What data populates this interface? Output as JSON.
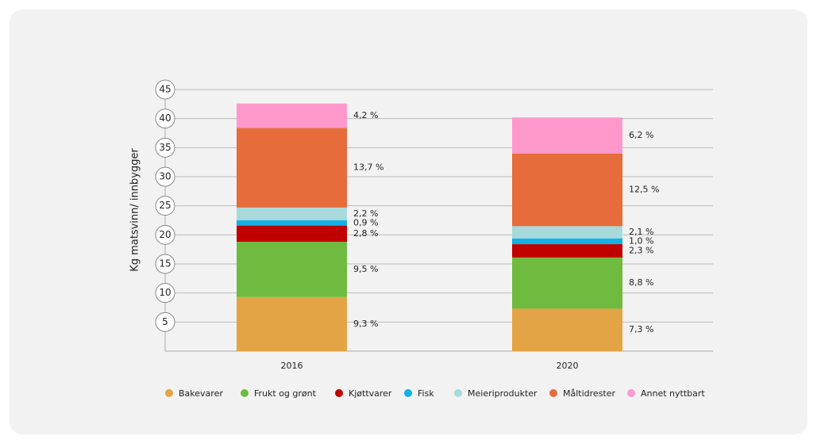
{
  "chart_data": {
    "type": "stacked_bar",
    "y_axis_label": "Kg matsvinn/ innbygger",
    "categories": [
      "2016",
      "2020"
    ],
    "series": [
      {
        "name": "Bakevarer",
        "color": "#e3a445",
        "values": [
          9.3,
          7.3
        ],
        "value_labels": [
          "9,3 %",
          "7,3 %"
        ]
      },
      {
        "name": "Frukt og grønt",
        "color": "#6fbb3f",
        "values": [
          9.5,
          8.8
        ],
        "value_labels": [
          "9,5 %",
          "8,8 %"
        ]
      },
      {
        "name": "Kjøttvarer",
        "color": "#c00000",
        "values": [
          2.8,
          2.3
        ],
        "value_labels": [
          "2,8 %",
          "2,3 %"
        ]
      },
      {
        "name": "Fisk",
        "color": "#14b1e7",
        "values": [
          0.9,
          1.0
        ],
        "value_labels": [
          "0,9 %",
          "1,0 %"
        ]
      },
      {
        "name": "Meieriprodukter",
        "color": "#a8dadc",
        "values": [
          2.2,
          2.1
        ],
        "value_labels": [
          "2,2 %",
          "2,1 %"
        ]
      },
      {
        "name": "Måltidrester",
        "color": "#e66c3b",
        "values": [
          13.7,
          12.5
        ],
        "value_labels": [
          "13,7 %",
          "12,5 %"
        ]
      },
      {
        "name": "Annet nyttbart",
        "color": "#ff99cc",
        "values": [
          4.2,
          6.2
        ],
        "value_labels": [
          "4,2 %",
          "6,2 %"
        ]
      }
    ],
    "ylim": [
      0,
      45
    ],
    "yticks": [
      5,
      10,
      15,
      20,
      25,
      30,
      35,
      40,
      45
    ],
    "grid": true,
    "legend": "bottom"
  }
}
